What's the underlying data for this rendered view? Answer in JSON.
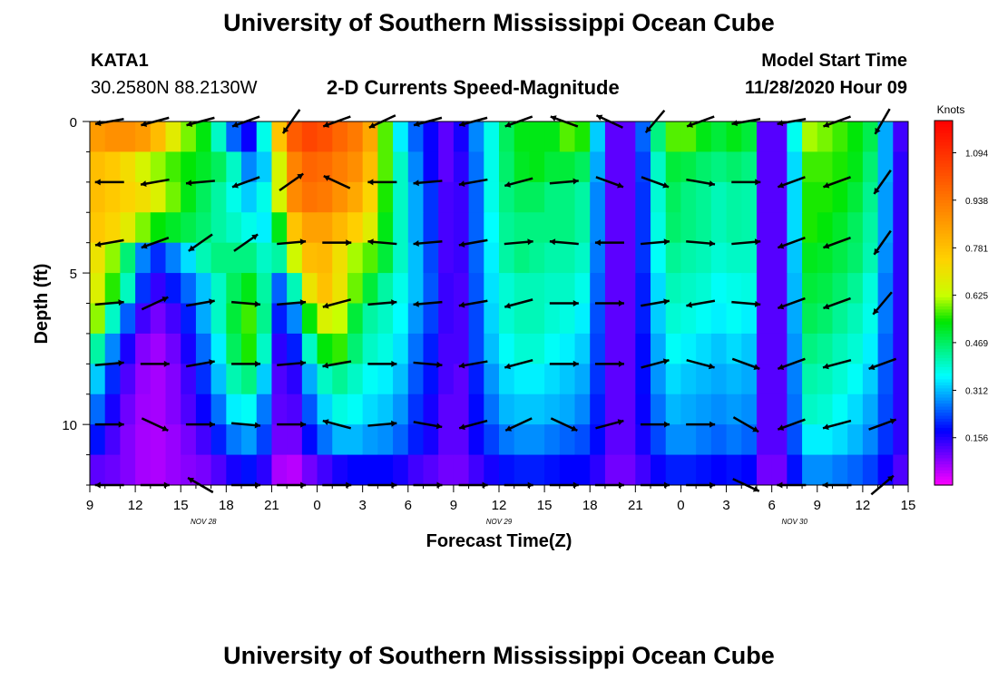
{
  "header": {
    "title": "University of Southern Mississippi Ocean Cube",
    "station": "KATA1",
    "coordinates": "30.2580N 88.2130W",
    "subtitle": "2-D Currents Speed-Magnitude",
    "start_label": "Model Start Time",
    "start_value": "11/28/2020 Hour 09"
  },
  "footer": {
    "title": "University of Southern Mississippi Ocean Cube"
  },
  "chart_data": {
    "type": "heatmap",
    "xlabel": "Forecast Time(Z)",
    "ylabel": "Depth (ft)",
    "colorbar_label": "Knots",
    "x_range": [
      0,
      54
    ],
    "x_unit": "hours since 11/28/2020 09Z",
    "x_tick_labels": [
      "9",
      "12",
      "15",
      "18",
      "21",
      "0",
      "3",
      "6",
      "9",
      "12",
      "15",
      "18",
      "21",
      "0",
      "3",
      "6",
      "9",
      "12",
      "15"
    ],
    "date_labels": [
      {
        "text": "NOV 28",
        "at": 7.5
      },
      {
        "text": "NOV 29",
        "at": 27
      },
      {
        "text": "NOV 30",
        "at": 46.5
      }
    ],
    "y_range": [
      0,
      12
    ],
    "y_tick_labels": [
      0,
      5,
      10
    ],
    "y_reversed": true,
    "colorbar_ticks": [
      1.094,
      0.938,
      0.781,
      0.625,
      0.469,
      0.312,
      0.156
    ],
    "colorbar_range": [
      0,
      1.2
    ],
    "times": [
      0,
      1,
      2,
      3,
      4,
      5,
      6,
      7,
      8,
      9,
      10,
      11,
      12,
      13,
      14,
      15,
      16,
      17,
      18,
      19,
      20,
      21,
      22,
      23,
      24,
      25,
      26,
      27,
      28,
      29,
      30,
      31,
      32,
      33,
      34,
      35,
      36,
      37,
      38,
      39,
      40,
      41,
      42,
      43,
      44,
      45,
      46,
      47,
      48,
      49,
      50,
      51,
      52,
      53,
      54
    ],
    "depths": [
      0.5,
      1.5,
      2.5,
      3.5,
      4.5,
      5.5,
      6.5,
      7.5,
      8.5,
      9.5,
      10.5,
      11.5
    ],
    "speed_control": {
      "times": [
        0,
        2,
        4,
        6,
        8,
        9,
        10,
        11,
        12,
        13,
        14,
        15,
        16,
        17,
        18,
        19,
        20,
        21,
        22,
        23,
        24,
        25,
        26,
        27,
        28,
        29,
        30,
        31,
        32,
        33,
        34,
        35,
        36,
        37,
        38,
        39,
        40,
        41,
        42,
        43,
        43.5,
        44,
        44.5,
        45,
        45.5,
        46,
        47,
        48,
        49,
        50,
        51,
        52,
        53,
        54
      ],
      "values": [
        [
          0.85,
          0.9,
          0.85,
          0.62,
          0.5,
          0.3,
          0.2,
          0.15,
          0.6,
          0.95,
          1.05,
          1.05,
          1.0,
          0.95,
          0.92,
          0.75,
          0.4,
          0.3,
          0.2,
          0.15,
          0.08,
          0.25,
          0.3,
          0.45,
          0.5,
          0.55,
          0.5,
          0.55,
          0.6,
          0.5,
          0.15,
          0.08,
          0.15,
          0.35,
          0.55,
          0.6,
          0.55,
          0.5,
          0.5,
          0.55,
          0.5,
          0.12,
          0.12,
          0.12,
          0.12,
          0.12,
          0.62,
          0.6,
          0.58,
          0.55,
          0.52,
          0.45,
          0.15,
          0.12
        ],
        [
          0.8,
          0.75,
          0.62,
          0.55,
          0.5,
          0.45,
          0.35,
          0.2,
          0.45,
          0.85,
          0.98,
          0.98,
          0.95,
          0.9,
          0.88,
          0.7,
          0.45,
          0.35,
          0.2,
          0.15,
          0.08,
          0.22,
          0.3,
          0.45,
          0.48,
          0.55,
          0.5,
          0.5,
          0.5,
          0.45,
          0.15,
          0.08,
          0.15,
          0.3,
          0.5,
          0.5,
          0.48,
          0.45,
          0.45,
          0.48,
          0.45,
          0.12,
          0.12,
          0.12,
          0.12,
          0.12,
          0.55,
          0.58,
          0.55,
          0.55,
          0.5,
          0.42,
          0.18,
          0.12
        ],
        [
          0.8,
          0.75,
          0.7,
          0.55,
          0.45,
          0.4,
          0.35,
          0.3,
          0.45,
          0.85,
          0.95,
          0.95,
          0.92,
          0.85,
          0.82,
          0.65,
          0.45,
          0.35,
          0.25,
          0.18,
          0.08,
          0.2,
          0.3,
          0.45,
          0.45,
          0.5,
          0.45,
          0.45,
          0.45,
          0.4,
          0.15,
          0.08,
          0.15,
          0.28,
          0.5,
          0.45,
          0.45,
          0.42,
          0.4,
          0.45,
          0.42,
          0.12,
          0.12,
          0.12,
          0.12,
          0.12,
          0.55,
          0.55,
          0.55,
          0.52,
          0.48,
          0.4,
          0.18,
          0.12
        ],
        [
          0.78,
          0.72,
          0.55,
          0.5,
          0.45,
          0.4,
          0.4,
          0.35,
          0.35,
          0.7,
          0.85,
          0.85,
          0.85,
          0.75,
          0.75,
          0.6,
          0.45,
          0.35,
          0.25,
          0.18,
          0.08,
          0.2,
          0.3,
          0.42,
          0.45,
          0.45,
          0.45,
          0.45,
          0.45,
          0.4,
          0.15,
          0.08,
          0.15,
          0.28,
          0.48,
          0.45,
          0.45,
          0.42,
          0.4,
          0.45,
          0.42,
          0.12,
          0.12,
          0.12,
          0.12,
          0.12,
          0.55,
          0.55,
          0.52,
          0.5,
          0.45,
          0.4,
          0.18,
          0.12
        ],
        [
          0.75,
          0.55,
          0.18,
          0.3,
          0.45,
          0.45,
          0.45,
          0.45,
          0.35,
          0.5,
          0.78,
          0.8,
          0.8,
          0.62,
          0.6,
          0.55,
          0.45,
          0.35,
          0.28,
          0.18,
          0.08,
          0.2,
          0.3,
          0.4,
          0.45,
          0.45,
          0.42,
          0.42,
          0.42,
          0.38,
          0.15,
          0.08,
          0.15,
          0.28,
          0.45,
          0.42,
          0.42,
          0.4,
          0.38,
          0.42,
          0.4,
          0.12,
          0.12,
          0.12,
          0.12,
          0.12,
          0.52,
          0.52,
          0.5,
          0.48,
          0.45,
          0.38,
          0.18,
          0.12
        ],
        [
          0.72,
          0.5,
          0.12,
          0.22,
          0.35,
          0.45,
          0.5,
          0.55,
          0.3,
          0.2,
          0.62,
          0.78,
          0.78,
          0.62,
          0.55,
          0.45,
          0.4,
          0.35,
          0.28,
          0.2,
          0.08,
          0.18,
          0.3,
          0.38,
          0.4,
          0.42,
          0.4,
          0.4,
          0.4,
          0.35,
          0.15,
          0.08,
          0.15,
          0.25,
          0.42,
          0.4,
          0.4,
          0.38,
          0.35,
          0.4,
          0.38,
          0.12,
          0.12,
          0.12,
          0.12,
          0.12,
          0.5,
          0.5,
          0.48,
          0.45,
          0.42,
          0.35,
          0.18,
          0.12
        ],
        [
          0.7,
          0.3,
          0.08,
          0.15,
          0.35,
          0.45,
          0.55,
          0.58,
          0.3,
          0.1,
          0.45,
          0.62,
          0.7,
          0.55,
          0.45,
          0.4,
          0.4,
          0.32,
          0.25,
          0.2,
          0.08,
          0.18,
          0.28,
          0.38,
          0.4,
          0.42,
          0.4,
          0.38,
          0.38,
          0.32,
          0.15,
          0.08,
          0.15,
          0.25,
          0.4,
          0.38,
          0.38,
          0.35,
          0.35,
          0.38,
          0.35,
          0.12,
          0.12,
          0.12,
          0.12,
          0.12,
          0.48,
          0.48,
          0.45,
          0.42,
          0.4,
          0.35,
          0.18,
          0.12
        ],
        [
          0.5,
          0.2,
          0.05,
          0.12,
          0.3,
          0.4,
          0.55,
          0.55,
          0.25,
          0.05,
          0.35,
          0.45,
          0.62,
          0.5,
          0.42,
          0.38,
          0.38,
          0.3,
          0.22,
          0.18,
          0.08,
          0.18,
          0.28,
          0.35,
          0.38,
          0.4,
          0.38,
          0.35,
          0.35,
          0.3,
          0.15,
          0.08,
          0.15,
          0.22,
          0.38,
          0.35,
          0.35,
          0.32,
          0.32,
          0.35,
          0.32,
          0.12,
          0.12,
          0.12,
          0.12,
          0.12,
          0.45,
          0.45,
          0.42,
          0.4,
          0.38,
          0.32,
          0.18,
          0.12
        ],
        [
          0.38,
          0.15,
          0.05,
          0.1,
          0.25,
          0.38,
          0.45,
          0.45,
          0.2,
          0.05,
          0.25,
          0.35,
          0.45,
          0.42,
          0.38,
          0.35,
          0.35,
          0.28,
          0.2,
          0.18,
          0.08,
          0.15,
          0.25,
          0.32,
          0.35,
          0.35,
          0.35,
          0.32,
          0.32,
          0.28,
          0.15,
          0.08,
          0.15,
          0.22,
          0.35,
          0.32,
          0.32,
          0.3,
          0.3,
          0.32,
          0.3,
          0.12,
          0.12,
          0.12,
          0.12,
          0.12,
          0.42,
          0.42,
          0.4,
          0.38,
          0.35,
          0.3,
          0.18,
          0.12
        ],
        [
          0.3,
          0.12,
          0.05,
          0.1,
          0.2,
          0.32,
          0.38,
          0.35,
          0.18,
          0.05,
          0.2,
          0.28,
          0.38,
          0.38,
          0.35,
          0.32,
          0.32,
          0.25,
          0.18,
          0.15,
          0.08,
          0.15,
          0.22,
          0.3,
          0.32,
          0.32,
          0.32,
          0.3,
          0.3,
          0.25,
          0.15,
          0.08,
          0.15,
          0.2,
          0.32,
          0.3,
          0.3,
          0.28,
          0.28,
          0.3,
          0.28,
          0.12,
          0.12,
          0.12,
          0.12,
          0.12,
          0.4,
          0.4,
          0.38,
          0.35,
          0.32,
          0.28,
          0.18,
          0.12
        ],
        [
          0.22,
          0.1,
          0.05,
          0.08,
          0.15,
          0.25,
          0.28,
          0.3,
          0.15,
          0.05,
          0.15,
          0.22,
          0.3,
          0.32,
          0.3,
          0.28,
          0.28,
          0.22,
          0.18,
          0.15,
          0.08,
          0.15,
          0.2,
          0.25,
          0.28,
          0.28,
          0.28,
          0.25,
          0.25,
          0.22,
          0.15,
          0.08,
          0.15,
          0.18,
          0.28,
          0.28,
          0.28,
          0.25,
          0.25,
          0.28,
          0.25,
          0.12,
          0.12,
          0.12,
          0.12,
          0.12,
          0.35,
          0.35,
          0.35,
          0.32,
          0.3,
          0.25,
          0.18,
          0.12
        ],
        [
          0.12,
          0.1,
          0.05,
          0.08,
          0.1,
          0.15,
          0.18,
          0.2,
          0.1,
          0.02,
          0.08,
          0.12,
          0.15,
          0.18,
          0.18,
          0.18,
          0.18,
          0.15,
          0.12,
          0.12,
          0.08,
          0.12,
          0.15,
          0.18,
          0.2,
          0.2,
          0.2,
          0.18,
          0.18,
          0.18,
          0.12,
          0.08,
          0.12,
          0.15,
          0.2,
          0.2,
          0.2,
          0.18,
          0.18,
          0.2,
          0.18,
          0.1,
          0.1,
          0.1,
          0.1,
          0.1,
          0.28,
          0.28,
          0.28,
          0.25,
          0.25,
          0.2,
          0.15,
          0.1
        ]
      ]
    },
    "vectors": {
      "depths": [
        0,
        2,
        4,
        6,
        8,
        10,
        12
      ],
      "times": [
        1,
        4,
        7,
        10,
        13,
        16,
        19,
        22,
        25,
        28,
        31,
        34,
        37,
        40,
        43,
        46,
        49,
        52
      ],
      "angles_deg": [
        [
          190,
          195,
          195,
          200,
          235,
          200,
          205,
          195,
          195,
          200,
          160,
          155,
          230,
          200,
          190,
          190,
          200,
          240
        ],
        [
          180,
          190,
          185,
          200,
          35,
          155,
          180,
          185,
          190,
          195,
          5,
          340,
          340,
          350,
          0,
          200,
          200,
          235
        ],
        [
          190,
          200,
          215,
          35,
          5,
          0,
          175,
          185,
          190,
          5,
          175,
          180,
          5,
          355,
          5,
          200,
          200,
          235
        ],
        [
          5,
          25,
          10,
          355,
          5,
          195,
          5,
          185,
          190,
          195,
          0,
          0,
          10,
          190,
          355,
          200,
          200,
          230
        ],
        [
          5,
          0,
          10,
          0,
          5,
          190,
          0,
          355,
          190,
          195,
          0,
          0,
          15,
          345,
          340,
          200,
          195,
          200
        ],
        [
          0,
          335,
          0,
          355,
          0,
          165,
          5,
          350,
          195,
          205,
          335,
          15,
          0,
          0,
          330,
          200,
          195,
          20
        ],
        [
          180,
          0,
          150,
          0,
          0,
          0,
          0,
          0,
          0,
          0,
          0,
          0,
          0,
          0,
          335,
          180,
          180,
          40
        ]
      ]
    }
  }
}
